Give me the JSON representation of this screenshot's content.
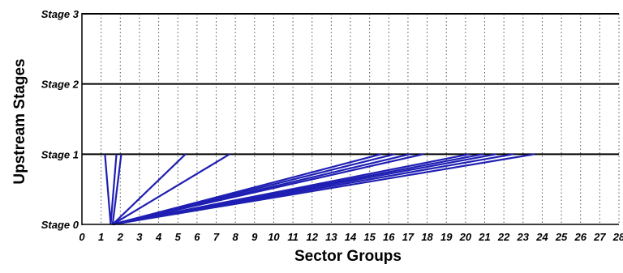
{
  "chart_data": {
    "type": "line",
    "xlabel": "Sector Groups",
    "ylabel": "Upstream Stages",
    "xlim": [
      0,
      28
    ],
    "ylim": [
      0,
      3
    ],
    "x_tick_labels": [
      "0",
      "1",
      "2",
      "3",
      "4",
      "5",
      "6",
      "7",
      "8",
      "9",
      "10",
      "11",
      "12",
      "13",
      "14",
      "15",
      "16",
      "17",
      "18",
      "19",
      "20",
      "21",
      "22",
      "23",
      "24",
      "25",
      "26",
      "27",
      "28"
    ],
    "y_tick_labels": [
      "Stage 0",
      "Stage 1",
      "Stage 2",
      "Stage 3"
    ],
    "dotted_vertical_gridlines_at_x": [
      1,
      2,
      3,
      4,
      5,
      6,
      7,
      8,
      9,
      10,
      11,
      12,
      13,
      14,
      15,
      16,
      17,
      18,
      19,
      20,
      21,
      22,
      23,
      24,
      25,
      26,
      27,
      28
    ],
    "solid_horizontal_gridlines_at_y": [
      1,
      2,
      3
    ],
    "line_color": "#1f1fb4",
    "links": [
      {
        "x": [
          1.5,
          1.2
        ],
        "y": [
          0,
          1
        ]
      },
      {
        "x": [
          1.5,
          1.8
        ],
        "y": [
          0,
          1
        ]
      },
      {
        "x": [
          1.6,
          2.05
        ],
        "y": [
          0,
          1
        ]
      },
      {
        "x": [
          1.6,
          5.4
        ],
        "y": [
          0,
          1
        ]
      },
      {
        "x": [
          1.6,
          7.7
        ],
        "y": [
          0,
          1
        ]
      },
      {
        "x": [
          1.6,
          15.6
        ],
        "y": [
          0,
          1
        ]
      },
      {
        "x": [
          1.6,
          16.3
        ],
        "y": [
          0,
          1
        ]
      },
      {
        "x": [
          1.6,
          17.1
        ],
        "y": [
          0,
          1
        ]
      },
      {
        "x": [
          1.6,
          17.8
        ],
        "y": [
          0,
          1
        ]
      },
      {
        "x": [
          1.6,
          20.2
        ],
        "y": [
          0,
          1
        ]
      },
      {
        "x": [
          1.6,
          20.9
        ],
        "y": [
          0,
          1
        ]
      },
      {
        "x": [
          1.6,
          21.6
        ],
        "y": [
          0,
          1
        ]
      },
      {
        "x": [
          1.6,
          22.5
        ],
        "y": [
          0,
          1
        ]
      },
      {
        "x": [
          1.6,
          23.6
        ],
        "y": [
          0,
          1
        ]
      }
    ]
  }
}
